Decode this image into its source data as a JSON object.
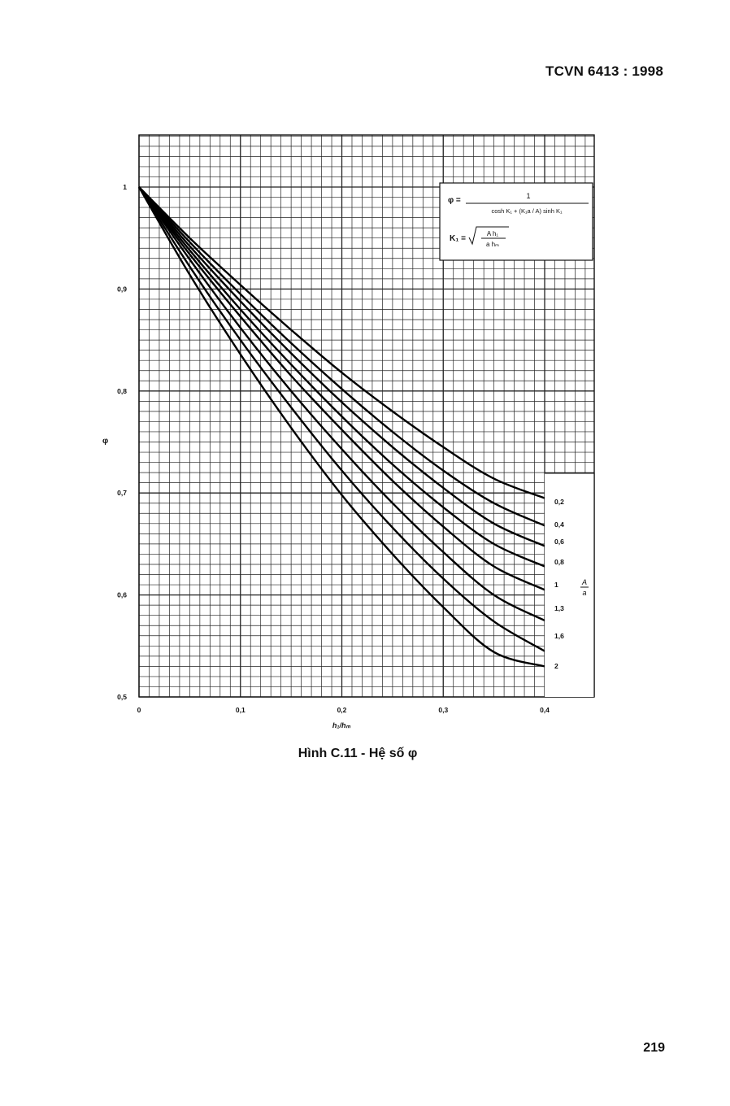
{
  "header": {
    "doc_code": "TCVN 6413 : 1998"
  },
  "caption": "Hình C.11 - Hệ số φ",
  "page_number": "219",
  "formula": {
    "phi_lhs": "φ =",
    "phi_num": "1",
    "phi_den": "cosh K₁ + (K₁a / A) sinh K₁",
    "k1_lhs": "K₁ =",
    "k1_num": "A h₁",
    "k1_den": "a hₘ"
  },
  "chart_data": {
    "type": "line",
    "title": "",
    "xlabel": "h₁/hₘ",
    "ylabel": "φ",
    "xlim": [
      0,
      0.4
    ],
    "ylim": [
      0.5,
      1.0
    ],
    "x_ticks": [
      0,
      0.1,
      0.2,
      0.3,
      0.4
    ],
    "x_tick_labels": [
      "0",
      "0,1",
      "0,2",
      "0,3",
      "0,4"
    ],
    "y_ticks": [
      0.5,
      0.6,
      0.7,
      0.8,
      0.9,
      1.0
    ],
    "y_tick_labels": [
      "0,5",
      "0,6",
      "0,7",
      "0,8",
      "0,9",
      "1"
    ],
    "grid": true,
    "legend_title": "A/a",
    "legend_title_num": "A",
    "legend_title_den": "a",
    "legend_placement": "right",
    "x": [
      0,
      0.05,
      0.1,
      0.15,
      0.2,
      0.25,
      0.3,
      0.35,
      0.4
    ],
    "series": [
      {
        "name": "0,2",
        "values": [
          1.0,
          0.95,
          0.904,
          0.86,
          0.818,
          0.78,
          0.745,
          0.714,
          0.695
        ]
      },
      {
        "name": "0,4",
        "values": [
          1.0,
          0.946,
          0.895,
          0.847,
          0.802,
          0.76,
          0.722,
          0.69,
          0.668
        ]
      },
      {
        "name": "0,6",
        "values": [
          1.0,
          0.942,
          0.888,
          0.837,
          0.789,
          0.745,
          0.705,
          0.67,
          0.648
        ]
      },
      {
        "name": "0,8",
        "values": [
          1.0,
          0.938,
          0.88,
          0.826,
          0.775,
          0.728,
          0.686,
          0.65,
          0.628
        ]
      },
      {
        "name": "1",
        "values": [
          1.0,
          0.934,
          0.873,
          0.815,
          0.762,
          0.712,
          0.667,
          0.628,
          0.605
        ]
      },
      {
        "name": "1,3",
        "values": [
          1.0,
          0.929,
          0.862,
          0.8,
          0.743,
          0.69,
          0.642,
          0.6,
          0.575
        ]
      },
      {
        "name": "1,6",
        "values": [
          1.0,
          0.922,
          0.85,
          0.784,
          0.722,
          0.666,
          0.616,
          0.574,
          0.545
        ]
      },
      {
        "name": "2",
        "values": [
          1.0,
          0.914,
          0.836,
          0.764,
          0.698,
          0.64,
          0.588,
          0.544,
          0.53
        ]
      }
    ]
  }
}
